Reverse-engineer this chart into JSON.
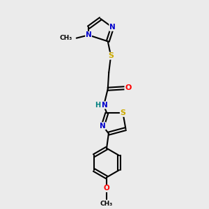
{
  "bg_color": "#ebebeb",
  "bond_color": "#000000",
  "atom_colors": {
    "N": "#0000cc",
    "S": "#ccaa00",
    "O": "#ff0000",
    "C": "#000000",
    "H": "#008080"
  }
}
